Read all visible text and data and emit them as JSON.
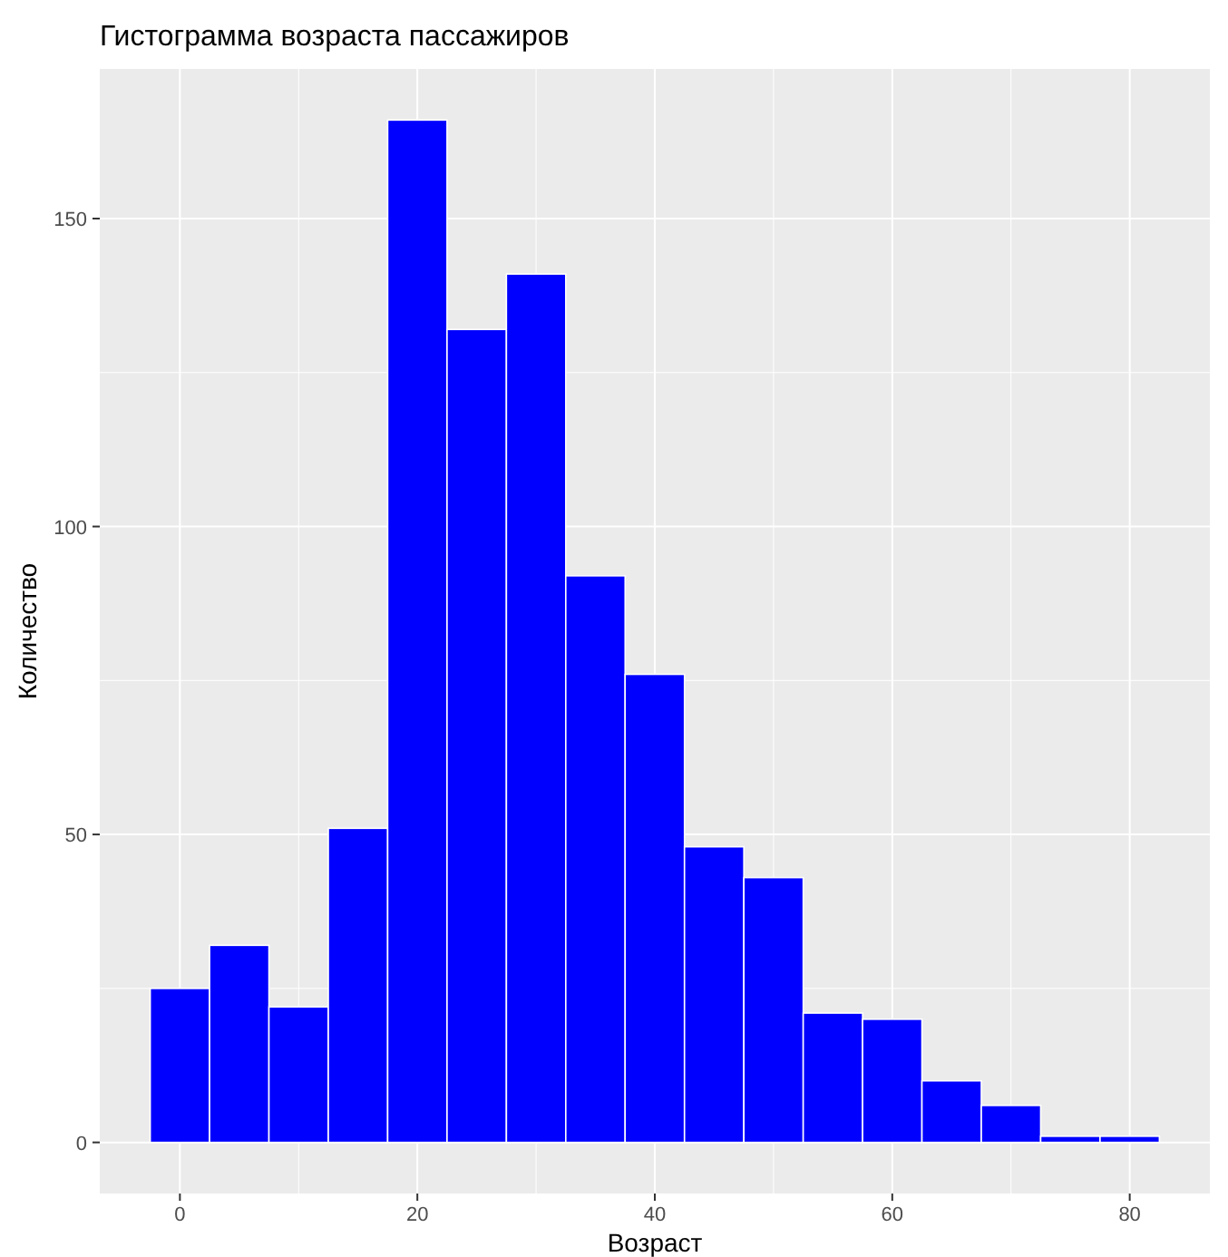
{
  "chart_data": {
    "type": "histogram",
    "title": "Гистограмма возраста пассажиров",
    "xlabel": "Возраст",
    "ylabel": "Количество",
    "bins": [
      -2.5,
      2.5,
      7.5,
      12.5,
      17.5,
      22.5,
      27.5,
      32.5,
      37.5,
      42.5,
      47.5,
      52.5,
      57.5,
      62.5,
      67.5,
      72.5,
      77.5,
      82.5
    ],
    "values": [
      25,
      32,
      22,
      51,
      166,
      132,
      141,
      92,
      76,
      48,
      43,
      21,
      20,
      10,
      6,
      1,
      1
    ],
    "color": "#0000ff",
    "xlim": [
      -6.75,
      86.75
    ],
    "xticks": [
      0,
      20,
      40,
      60,
      80
    ],
    "ylim": [
      -8.3,
      174.3
    ],
    "yticks": [
      0,
      50,
      100,
      150
    ],
    "grid": true
  }
}
